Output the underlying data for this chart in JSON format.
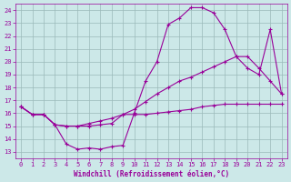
{
  "xlabel": "Windchill (Refroidissement éolien,°C)",
  "background_color": "#cce8e8",
  "grid_color": "#9bbaba",
  "line_color": "#990099",
  "xlim": [
    -0.5,
    23.5
  ],
  "ylim": [
    12.5,
    24.5
  ],
  "xticks": [
    0,
    1,
    2,
    3,
    4,
    5,
    6,
    7,
    8,
    9,
    10,
    11,
    12,
    13,
    14,
    15,
    16,
    17,
    18,
    19,
    20,
    21,
    22,
    23
  ],
  "yticks": [
    13,
    14,
    15,
    16,
    17,
    18,
    19,
    20,
    21,
    22,
    23,
    24
  ],
  "series1_x": [
    0,
    1,
    2,
    3,
    4,
    5,
    6,
    7,
    8,
    9,
    10,
    11,
    12,
    13,
    14,
    15,
    16,
    17,
    18,
    19,
    20,
    21,
    22,
    23
  ],
  "series1_y": [
    16.5,
    15.9,
    15.9,
    15.1,
    13.6,
    13.2,
    13.3,
    13.2,
    13.4,
    13.5,
    16.0,
    18.5,
    20.0,
    22.9,
    23.4,
    24.2,
    24.2,
    23.8,
    22.5,
    20.4,
    19.5,
    19.0,
    22.5,
    17.5
  ],
  "series2_x": [
    0,
    1,
    2,
    3,
    4,
    5,
    6,
    7,
    8,
    9,
    10,
    11,
    12,
    13,
    14,
    15,
    16,
    17,
    18,
    19,
    20,
    21,
    22,
    23
  ],
  "series2_y": [
    16.5,
    15.9,
    15.9,
    15.1,
    15.0,
    15.0,
    15.0,
    15.1,
    15.2,
    15.9,
    15.9,
    15.9,
    16.0,
    16.1,
    16.2,
    16.3,
    16.5,
    16.6,
    16.7,
    16.7,
    16.7,
    16.7,
    16.7,
    16.7
  ],
  "series3_x": [
    0,
    1,
    2,
    3,
    4,
    5,
    6,
    7,
    8,
    9,
    10,
    11,
    12,
    13,
    14,
    15,
    16,
    17,
    18,
    19,
    20,
    21,
    22,
    23
  ],
  "series3_y": [
    16.5,
    15.9,
    15.9,
    15.1,
    15.0,
    15.0,
    15.2,
    15.4,
    15.6,
    15.9,
    16.3,
    16.9,
    17.5,
    18.0,
    18.5,
    18.8,
    19.2,
    19.6,
    20.0,
    20.4,
    20.4,
    19.5,
    18.5,
    17.5
  ]
}
